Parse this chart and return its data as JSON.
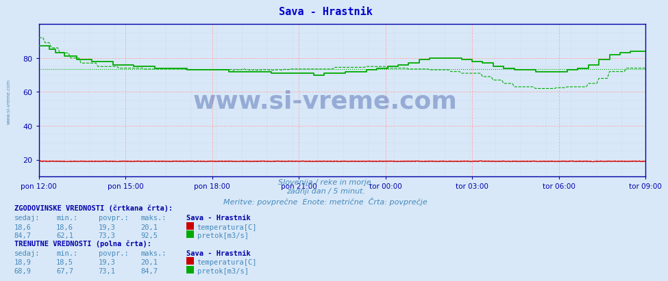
{
  "title": "Sava - Hrastnik",
  "title_color": "#0000cc",
  "bg_color": "#d8e8f8",
  "ylim": [
    10,
    100
  ],
  "yticks": [
    20,
    40,
    60,
    80
  ],
  "x_labels": [
    "pon 12:00",
    "pon 15:00",
    "pon 18:00",
    "pon 21:00",
    "tor 00:00",
    "tor 03:00",
    "tor 06:00",
    "tor 09:00"
  ],
  "grid_color": "#ffaaaa",
  "temp_color": "#cc0000",
  "flow_color": "#00aa00",
  "avg_line_value": 73.3,
  "watermark": "www.si-vreme.com",
  "subtitle1": "Slovenija / reke in morje.",
  "subtitle2": "zadnji dan / 5 minut.",
  "subtitle3": "Meritve: povprečne  Enote: metrične  Črta: povprečje",
  "subtitle_color": "#4488bb",
  "text_color": "#0000aa",
  "hist_label": "ZGODOVINSKE VREDNOSTI (črtkana črta):",
  "curr_label": "TRENUTNE VREDNOSTI (polna črta):",
  "col_headers": [
    "sedaj:",
    "min.:",
    "povpr.:",
    "maks.:",
    "Sava - Hrastnik"
  ],
  "hist_temp": [
    "18,6",
    "18,6",
    "19,3",
    "20,1"
  ],
  "hist_flow": [
    "84,7",
    "62,1",
    "73,3",
    "92,5"
  ],
  "curr_temp": [
    "18,9",
    "18,5",
    "19,3",
    "20,1"
  ],
  "curr_flow": [
    "68,9",
    "67,7",
    "73,1",
    "84,7"
  ],
  "label_temp": "temperatura[C]",
  "label_flow": "pretok[m3/s]"
}
